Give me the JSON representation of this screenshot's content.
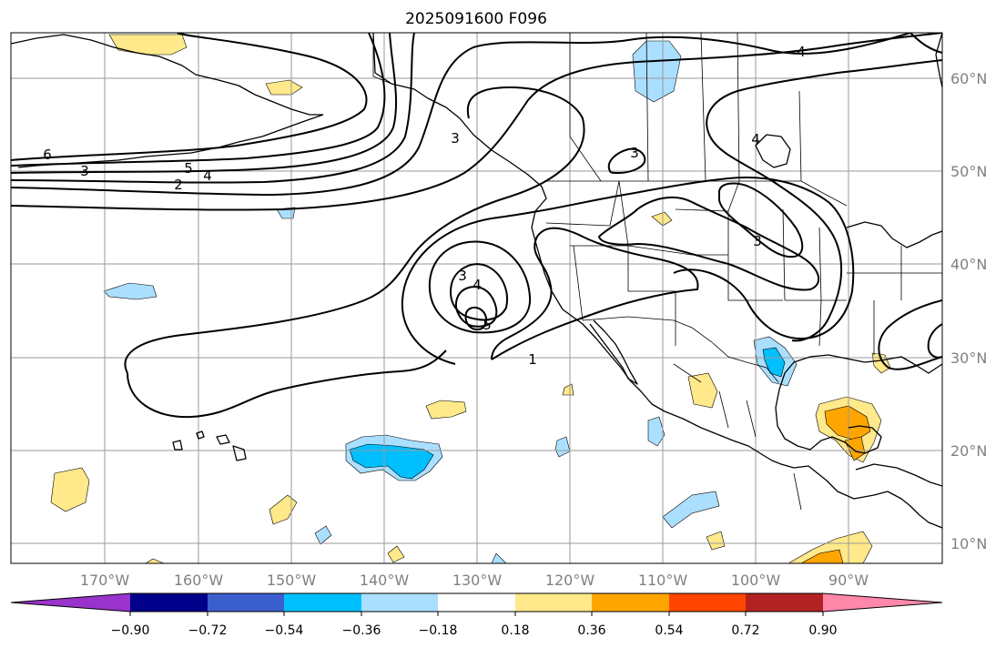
{
  "title": "2025091600 F096",
  "map": {
    "lat_labels": [
      "60°N",
      "50°N",
      "40°N",
      "30°N",
      "20°N",
      "10°N"
    ],
    "lon_labels": [
      "170°W",
      "160°W",
      "150°W",
      "140°W",
      "130°W",
      "120°W",
      "110°W",
      "100°W",
      "90°W"
    ],
    "contour_labels": [
      "6",
      "5",
      "4",
      "3",
      "2",
      "3",
      "4",
      "5",
      "1",
      "3",
      "4",
      "3",
      "4",
      "3"
    ]
  },
  "colorbar": {
    "ticks": [
      "−0.90",
      "−0.72",
      "−0.54",
      "−0.36",
      "−0.18",
      "0.18",
      "0.36",
      "0.54",
      "0.72",
      "0.90"
    ],
    "colors": [
      "#9933cc",
      "#00008b",
      "#3a5fcd",
      "#00bfff",
      "#abdfff",
      "#ffffff",
      "#ffe98a",
      "#ffa500",
      "#ff4500",
      "#b22222",
      "#ff88aa"
    ]
  }
}
